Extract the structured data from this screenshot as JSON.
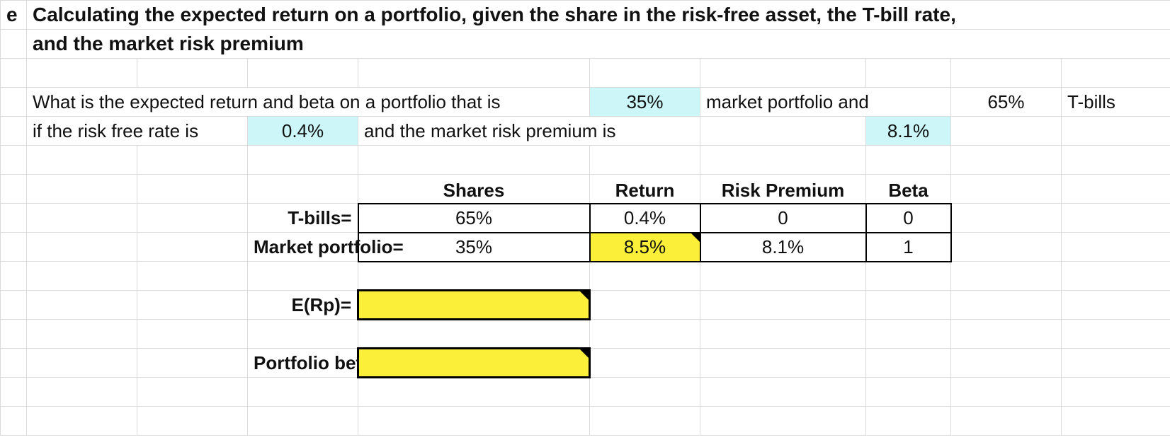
{
  "title": {
    "label": "e",
    "line1": "Calculating the expected return on a portfolio, given the share in the risk-free asset, the T-bill rate,",
    "line2": "and the market risk premium"
  },
  "question": {
    "line1_text": "What is the expected return and beta on a portfolio that is",
    "market_share": "35%",
    "line1_mid": "market portfolio and",
    "tbill_share": "65%",
    "line1_end": "T-bills",
    "line2_text": "if the risk free rate is",
    "risk_free": "0.4%",
    "line2_mid": "and the market risk premium is",
    "risk_premium": "8.1%"
  },
  "table": {
    "headers": [
      "Shares",
      "Return",
      "Risk Premium",
      "Beta"
    ],
    "rows": [
      {
        "label": "T-bills=",
        "cells": [
          "65%",
          "0.4%",
          "0",
          "0"
        ]
      },
      {
        "label": "Market portfolio=",
        "cells": [
          "35%",
          "8.5%",
          "8.1%",
          "1"
        ]
      }
    ]
  },
  "outputs": [
    {
      "label": "E(Rp)="
    },
    {
      "label": "Portfolio beta="
    }
  ]
}
